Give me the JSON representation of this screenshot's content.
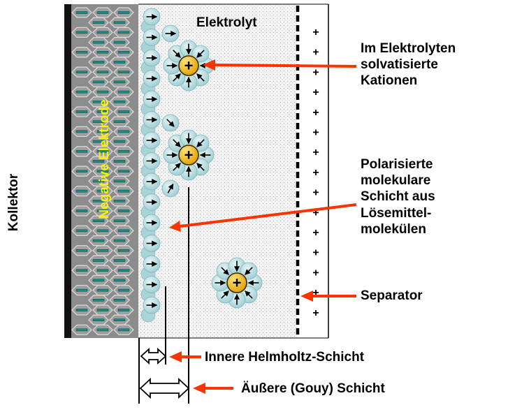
{
  "labels": {
    "elektrolyt": "Elektrolyt",
    "kollektor": "Kollektor",
    "negative_elektrode": "Negative Elektrode",
    "kationen": [
      "Im Elektrolyten",
      "solvatisierte",
      "Kationen"
    ],
    "polarisierte": [
      "Polarisierte",
      "molekulare",
      "Schicht aus",
      "Lösemittel-",
      "molekülen"
    ],
    "separator": "Separator",
    "innere": "Innere Helmholtz-Schicht",
    "aeussere": "Äußere (Gouy) Schicht"
  },
  "symbols": {
    "cation": "+",
    "separator_charge": "+"
  },
  "colors": {
    "collector": "#111111",
    "electrode": "#8c8c8c",
    "electrolyte": "#f2f2f2",
    "solvent": "#b9dde0",
    "cation": "#f0b400",
    "pointer": "#ff3300",
    "electrode_label": "#f8f400"
  }
}
